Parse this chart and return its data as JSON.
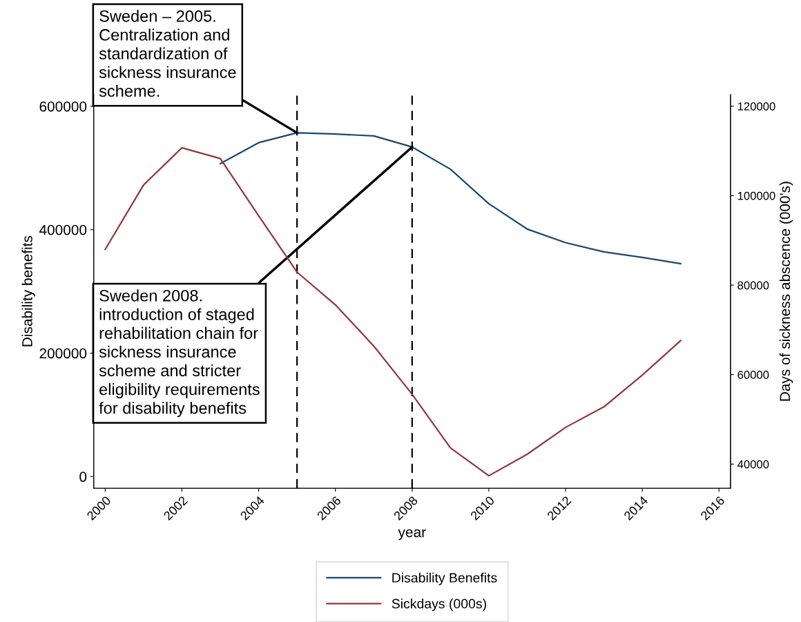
{
  "chart_data": {
    "type": "line",
    "xlabel": "year",
    "ylabel": "Disability benefits",
    "y2label": "Days of sickness abscence (000's)",
    "x": [
      2000,
      2001,
      2002,
      2003,
      2004,
      2005,
      2006,
      2007,
      2008,
      2009,
      2010,
      2011,
      2012,
      2013,
      2014,
      2015
    ],
    "series": [
      {
        "name": "Disability Benefits",
        "color": "#1a476f",
        "values": [
          null,
          null,
          null,
          507000,
          541000,
          557000,
          555000,
          552000,
          534000,
          498000,
          442000,
          401000,
          379000,
          364000,
          355000,
          345000
        ]
      },
      {
        "name": "Sickdays (000s)",
        "color": "#90353b",
        "axis": "y2",
        "values": [
          88000,
          102400,
          110700,
          108300,
          95500,
          82900,
          75600,
          66400,
          55600,
          43600,
          37400,
          42200,
          48200,
          52800,
          59900,
          67600
        ]
      }
    ],
    "xlim": [
      1999.7,
      2016.3
    ],
    "xticks": [
      2000,
      2002,
      2004,
      2006,
      2008,
      2010,
      2012,
      2014,
      2016
    ],
    "ylim": [
      -19000,
      619000
    ],
    "yticks": [
      0,
      200000,
      400000,
      600000
    ],
    "y2lim": [
      34600,
      122600
    ],
    "y2ticks": [
      40000,
      60000,
      80000,
      100000,
      120000
    ],
    "ref_lines": [
      {
        "axis": "x",
        "value": 2005,
        "color": "#000000",
        "line_style": "dashed"
      },
      {
        "axis": "x",
        "value": 2008,
        "color": "#000000",
        "line_style": "dashed"
      }
    ],
    "annotations": [
      {
        "text": "Sweden – 2005.\nCentralization and\nstandardization of\nsickness insurance\nscheme.",
        "x": 2005,
        "y": 557000
      },
      {
        "text": "Sweden 2008.\nintroduction of staged\nrehabilitation chain for\nsickness insurance\nscheme and stricter\neligibility requirements\nfor disability benefits",
        "x": 2008,
        "y": 534000
      }
    ],
    "grid": false,
    "legend": "bottom",
    "line_style": "solid",
    "marker": "none"
  }
}
